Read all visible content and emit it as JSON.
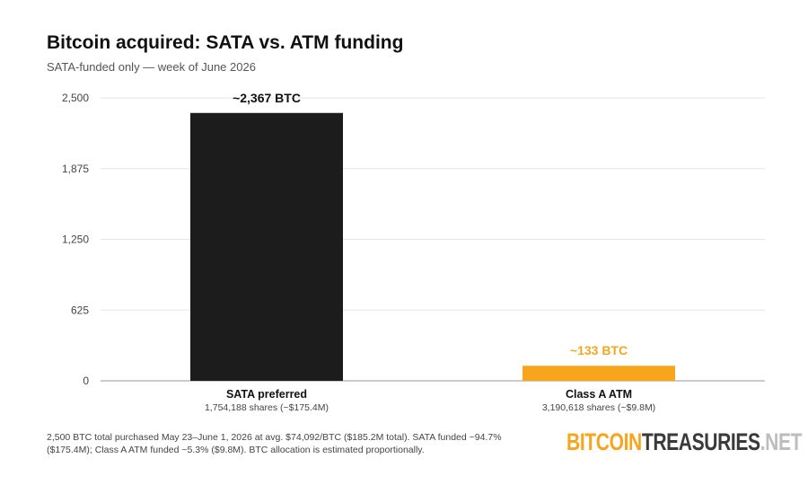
{
  "title": "Bitcoin acquired: SATA vs. ATM funding",
  "subtitle": "SATA-funded only — week of June 2026",
  "chart_data": {
    "type": "bar",
    "categories": [
      "SATA preferred",
      "Class A ATM"
    ],
    "sublabels": [
      "1,754,188 shares (~$175.4M)",
      "3,190,618 shares (~$9.8M)"
    ],
    "values": [
      2367,
      133
    ],
    "data_labels": [
      "~2,367 BTC",
      "~133 BTC"
    ],
    "colors": [
      "#1c1c1c",
      "#f7a51c"
    ],
    "label_colors": [
      "#111111",
      "#f7a51c"
    ],
    "yticks": [
      "0",
      "625",
      "1,250",
      "1,875",
      "2,500"
    ],
    "ylim": [
      0,
      2500
    ],
    "grid": true,
    "xlabel": "",
    "ylabel": ""
  },
  "footnote": "2,500 BTC total purchased May 23–June 1, 2026 at avg. $74,092/BTC ($185.2M total). SATA funded ~94.7% ($175.4M); Class A ATM funded ~5.3% ($9.8M). BTC allocation is estimated proportionally.",
  "logo": {
    "part1": "BITCOIN",
    "part2": "TREASURIES",
    "part3": ".NET"
  }
}
